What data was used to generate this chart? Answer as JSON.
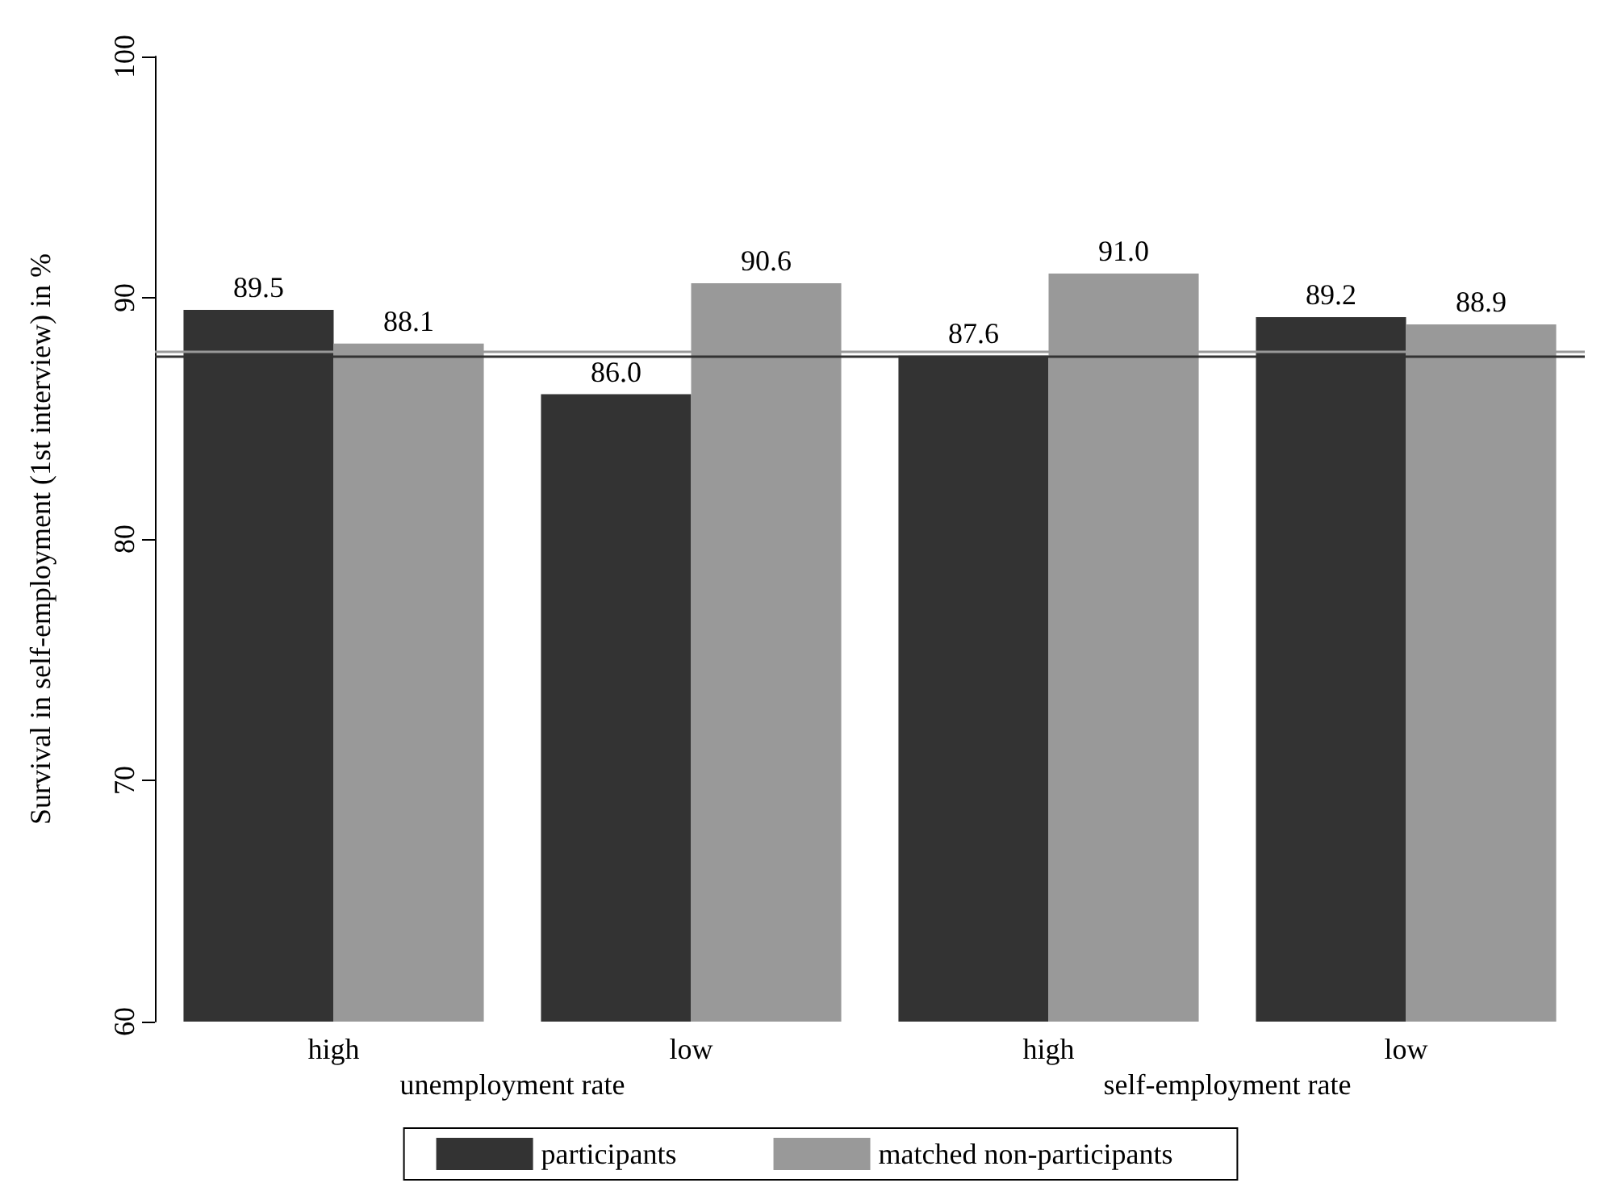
{
  "chart_data": {
    "type": "bar",
    "ylabel": "Survival in self-employment (1st interview) in %",
    "categories": [
      "high",
      "low",
      "high",
      "low"
    ],
    "series": [
      {
        "name": "participants",
        "color": "#333333",
        "values": [
          89.5,
          86.0,
          87.6,
          89.2
        ],
        "value_labels": [
          "89.5",
          "86.0",
          "87.6",
          "89.2"
        ]
      },
      {
        "name": "matched non-participants",
        "color": "#999999",
        "values": [
          88.1,
          90.6,
          91.0,
          88.9
        ],
        "value_labels": [
          "88.1",
          "90.6",
          "91.0",
          "88.9"
        ]
      }
    ],
    "ylim": [
      60,
      100
    ],
    "yticks": [
      60,
      70,
      80,
      90,
      100
    ],
    "grid": false,
    "legend": "bottom",
    "ref_lines": [
      {
        "axis": "y",
        "value": 87.6,
        "color": "#333333"
      },
      {
        "axis": "y",
        "value": 87.8,
        "color": "#999999"
      }
    ],
    "annotations": [
      "unemployment rate",
      "self-employment rate"
    ]
  }
}
